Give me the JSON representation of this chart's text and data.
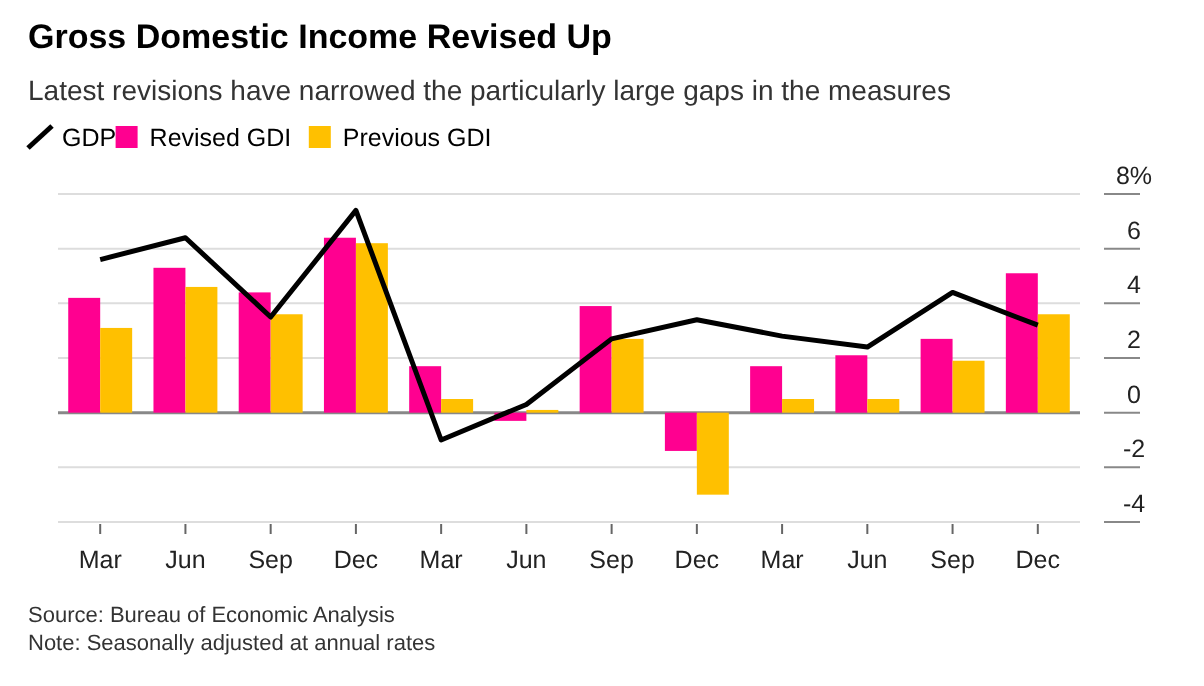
{
  "chart_data": {
    "type": "bar",
    "title": "Gross Domestic Income Revised Up",
    "subtitle": "Latest revisions have narrowed the particularly large gaps in the measures",
    "categories": [
      "Mar",
      "Jun",
      "Sep",
      "Dec",
      "Mar",
      "Jun",
      "Sep",
      "Dec",
      "Mar",
      "Jun",
      "Sep",
      "Dec"
    ],
    "series": [
      {
        "name": "GDP",
        "type": "line",
        "color": "#000000",
        "values": [
          5.6,
          6.4,
          3.5,
          7.4,
          -1.0,
          0.3,
          2.7,
          3.4,
          2.8,
          2.4,
          4.4,
          3.2
        ]
      },
      {
        "name": "Revised GDI",
        "color": "#ff0090",
        "values": [
          4.2,
          5.3,
          4.4,
          6.4,
          1.7,
          -0.3,
          3.9,
          -1.4,
          1.7,
          2.1,
          2.7,
          5.1
        ]
      },
      {
        "name": "Previous GDI",
        "color": "#ffc000",
        "values": [
          3.1,
          4.6,
          3.6,
          6.2,
          0.5,
          0.1,
          2.7,
          -3.0,
          0.5,
          0.5,
          1.9,
          3.6
        ]
      }
    ],
    "ylim": [
      -4,
      8
    ],
    "yticks": [
      {
        "value": 8,
        "label": "8%"
      },
      6,
      4,
      2,
      0,
      -2,
      -4
    ],
    "grid": "y",
    "legend": "top left",
    "annotations": [
      "Source: Bureau of Economic Analysis",
      "Note: Seasonally adjusted at annual rates"
    ]
  }
}
